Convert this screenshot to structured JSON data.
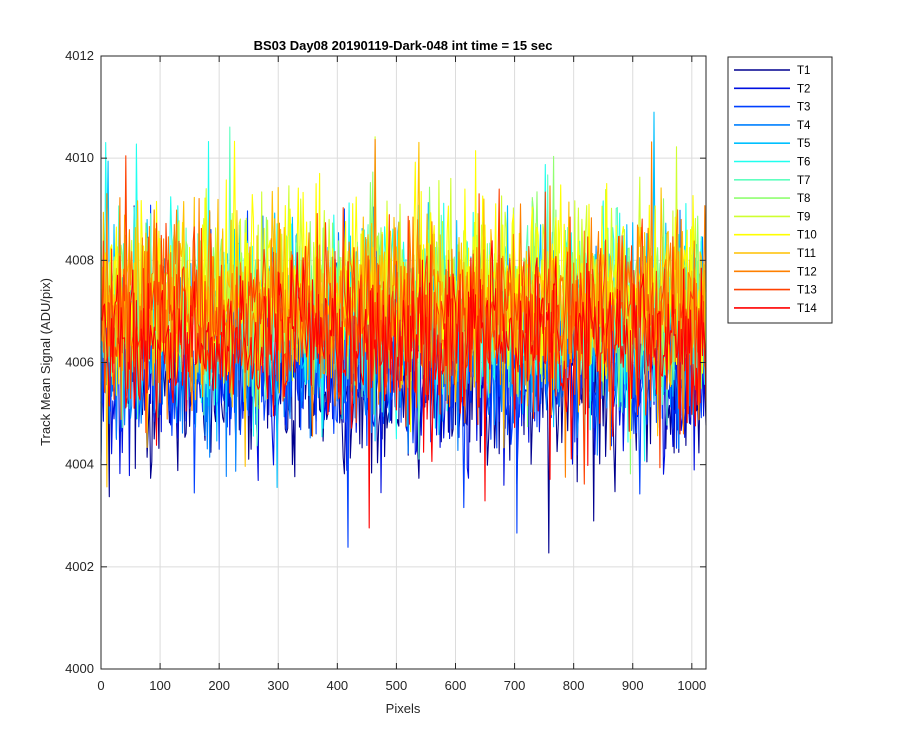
{
  "chart_data": {
    "type": "line",
    "title": "BS03 Day08 20190119-Dark-048 int time = 15 sec",
    "xlabel": "Pixels",
    "ylabel": "Track Mean Signal (ADU/pix)",
    "xlim": [
      0,
      1024
    ],
    "ylim": [
      4000,
      4012
    ],
    "xticks": [
      0,
      100,
      200,
      300,
      400,
      500,
      600,
      700,
      800,
      900,
      1000
    ],
    "yticks": [
      4000,
      4002,
      4004,
      4006,
      4008,
      4010,
      4012
    ],
    "grid": true,
    "legend_position": "outside-right-top",
    "series": [
      {
        "name": "T1",
        "color": "#00008F",
        "mean": 4005.6,
        "spread": 1.3
      },
      {
        "name": "T2",
        "color": "#0010E0",
        "mean": 4005.8,
        "spread": 1.3
      },
      {
        "name": "T3",
        "color": "#0040FF",
        "mean": 4006.0,
        "spread": 1.3
      },
      {
        "name": "T4",
        "color": "#0080FF",
        "mean": 4006.4,
        "spread": 1.4
      },
      {
        "name": "T5",
        "color": "#00C0FF",
        "mean": 4006.8,
        "spread": 1.4
      },
      {
        "name": "T6",
        "color": "#20FFEF",
        "mean": 4007.1,
        "spread": 1.4
      },
      {
        "name": "T7",
        "color": "#60FFBF",
        "mean": 4007.0,
        "spread": 1.3
      },
      {
        "name": "T8",
        "color": "#90FF70",
        "mean": 4007.2,
        "spread": 1.3
      },
      {
        "name": "T9",
        "color": "#CFFF30",
        "mean": 4007.3,
        "spread": 1.3
      },
      {
        "name": "T10",
        "color": "#FFFF00",
        "mean": 4007.4,
        "spread": 1.3
      },
      {
        "name": "T11",
        "color": "#FFC000",
        "mean": 4007.2,
        "spread": 1.3
      },
      {
        "name": "T12",
        "color": "#FF8000",
        "mean": 4007.1,
        "spread": 1.3
      },
      {
        "name": "T13",
        "color": "#FF4000",
        "mean": 4006.8,
        "spread": 1.3
      },
      {
        "name": "T14",
        "color": "#FF0000",
        "mean": 4006.4,
        "spread": 1.2
      }
    ]
  }
}
